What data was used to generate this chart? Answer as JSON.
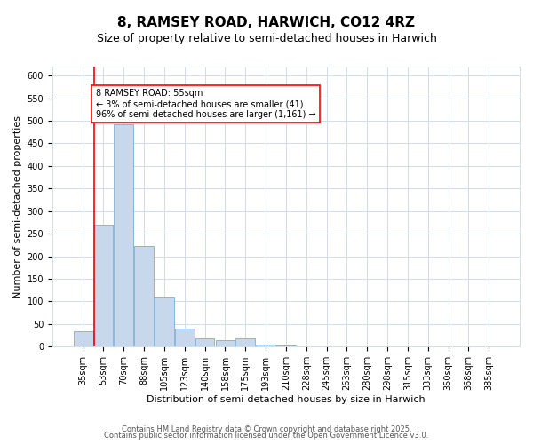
{
  "title": "8, RAMSEY ROAD, HARWICH, CO12 4RZ",
  "subtitle": "Size of property relative to semi-detached houses in Harwich",
  "xlabel": "Distribution of semi-detached houses by size in Harwich",
  "ylabel": "Number of semi-detached properties",
  "categories": [
    "35sqm",
    "53sqm",
    "70sqm",
    "88sqm",
    "105sqm",
    "123sqm",
    "140sqm",
    "158sqm",
    "175sqm",
    "193sqm",
    "210sqm",
    "228sqm",
    "245sqm",
    "263sqm",
    "280sqm",
    "298sqm",
    "315sqm",
    "333sqm",
    "350sqm",
    "368sqm",
    "385sqm"
  ],
  "bar_values": [
    35,
    270,
    493,
    223,
    109,
    40,
    18,
    15,
    18,
    5,
    2,
    1,
    0,
    0,
    0,
    0,
    0,
    0,
    0,
    0,
    0
  ],
  "bar_color": "#c8d8ec",
  "bar_edge_color": "#7aadd4",
  "ylim": [
    0,
    620
  ],
  "yticks": [
    0,
    50,
    100,
    150,
    200,
    250,
    300,
    350,
    400,
    450,
    500,
    550,
    600
  ],
  "red_line_index": 1,
  "annotation_text": "8 RAMSEY ROAD: 55sqm\n← 3% of semi-detached houses are smaller (41)\n96% of semi-detached houses are larger (1,161) →",
  "footer_line1": "Contains HM Land Registry data © Crown copyright and database right 2025.",
  "footer_line2": "Contains public sector information licensed under the Open Government Licence v3.0.",
  "background_color": "#ffffff",
  "grid_color": "#d0dce8",
  "title_fontsize": 11,
  "subtitle_fontsize": 9,
  "axis_label_fontsize": 8,
  "tick_fontsize": 7,
  "annotation_fontsize": 7,
  "footer_fontsize": 6
}
